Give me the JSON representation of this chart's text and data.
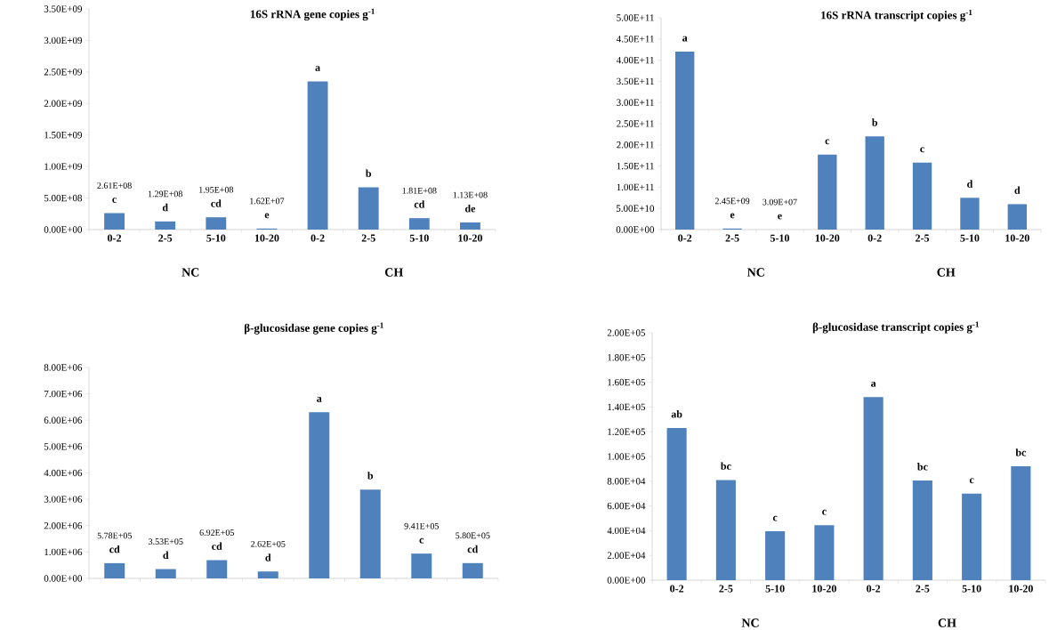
{
  "chart_data": [
    {
      "type": "bar",
      "title": "16S rRNA gene copies g$^{-1}$",
      "color": "#4f81bd",
      "categories": [
        "0-2",
        "2-5",
        "5-10",
        "10-20",
        "0-2",
        "2-5",
        "5-10",
        "10-20"
      ],
      "values": [
        261000000,
        129000000,
        195000000,
        16200000,
        2350000000,
        670000000,
        181000000,
        113000000
      ],
      "value_labels": [
        "2.61E+08",
        "1.29E+08",
        "1.95E+08",
        "1.62E+07",
        null,
        null,
        "1.81E+08",
        "1.13E+08"
      ],
      "ylim": [
        0,
        3500000000
      ],
      "yticks": [
        {
          "value": 0,
          "label": "0.00E+00"
        },
        {
          "value": 500000000,
          "label": "5.00E+08"
        },
        {
          "value": 1000000000,
          "label": "1.00E+09"
        },
        {
          "value": 1500000000,
          "label": "1.50E+09"
        },
        {
          "value": 2000000000,
          "label": "2.00E+09"
        },
        {
          "value": 2500000000,
          "label": "2.50E+09"
        },
        {
          "value": 3000000000,
          "label": "3.00E+09"
        },
        {
          "value": 3500000000,
          "label": "3.50E+09"
        }
      ],
      "annotations": [
        "c",
        "d",
        "cd",
        "e",
        "a",
        "b",
        "cd",
        "de",
        "NC",
        "CH"
      ]
    },
    {
      "type": "bar",
      "title": "16S rRNA transcript copies g$^{-1}$",
      "color": "#4f81bd",
      "categories": [
        "0-2",
        "2-5",
        "5-10",
        "10-20",
        "0-2",
        "2-5",
        "5-10",
        "10-20"
      ],
      "values": [
        420000000000,
        2450000000,
        30900000,
        177000000000,
        220000000000,
        158000000000,
        75000000000,
        60000000000
      ],
      "value_labels": [
        null,
        "2.45E+09",
        "3.09E+07",
        null,
        null,
        null,
        null,
        null
      ],
      "ylim": [
        0,
        500000000000
      ],
      "yticks": [
        {
          "value": 0,
          "label": "0.00E+00"
        },
        {
          "value": 50000000000,
          "label": "5.00E+10"
        },
        {
          "value": 100000000000,
          "label": "1.00E+11"
        },
        {
          "value": 150000000000,
          "label": "1.50E+11"
        },
        {
          "value": 200000000000,
          "label": "2.00E+11"
        },
        {
          "value": 250000000000,
          "label": "2.50E+11"
        },
        {
          "value": 300000000000,
          "label": "3.00E+11"
        },
        {
          "value": 350000000000,
          "label": "3.50E+11"
        },
        {
          "value": 400000000000,
          "label": "4.00E+11"
        },
        {
          "value": 450000000000,
          "label": "4.50E+11"
        },
        {
          "value": 500000000000,
          "label": "5.00E+11"
        }
      ],
      "annotations": [
        "a",
        "e",
        "e",
        "c",
        "b",
        "c",
        "d",
        "d",
        "NC",
        "CH"
      ]
    },
    {
      "type": "bar",
      "title": "β-glucosidase gene copies g$^{-1}$",
      "color": "#4f81bd",
      "categories": [
        null,
        null,
        null,
        null,
        null,
        null,
        null,
        null
      ],
      "values": [
        578000,
        353000,
        692000,
        262000,
        6300000,
        3370000,
        941000,
        580000
      ],
      "value_labels": [
        "5.78E+05",
        "3.53E+05",
        "6.92E+05",
        "2.62E+05",
        null,
        null,
        "9.41E+05",
        "5.80E+05"
      ],
      "ylim": [
        0,
        8000000
      ],
      "yticks": [
        {
          "value": 0,
          "label": "0.00E+00"
        },
        {
          "value": 1000000,
          "label": "1.00E+06"
        },
        {
          "value": 2000000,
          "label": "2.00E+06"
        },
        {
          "value": 3000000,
          "label": "3.00E+06"
        },
        {
          "value": 4000000,
          "label": "4.00E+06"
        },
        {
          "value": 5000000,
          "label": "5.00E+06"
        },
        {
          "value": 6000000,
          "label": "6.00E+06"
        },
        {
          "value": 7000000,
          "label": "7.00E+06"
        },
        {
          "value": 8000000,
          "label": "8.00E+06"
        }
      ],
      "tick_labels": "y",
      "annotations": [
        "cd",
        "d",
        "cd",
        "d",
        "a",
        "b",
        "c",
        "cd"
      ]
    },
    {
      "type": "bar",
      "title": "β-glucosidase transcript copies g$^{-1}$",
      "color": "#4f81bd",
      "categories": [
        "0-2",
        "2-5",
        "5-10",
        "10-20",
        "0-2",
        "2-5",
        "5-10",
        "10-20"
      ],
      "values": [
        123000,
        81000,
        39500,
        44500,
        148000,
        80500,
        70000,
        92000
      ],
      "ylim": [
        0,
        200000
      ],
      "yticks": [
        {
          "value": 0,
          "label": "0.00E+00"
        },
        {
          "value": 20000,
          "label": "2.00E+04"
        },
        {
          "value": 40000,
          "label": "4.00E+04"
        },
        {
          "value": 60000,
          "label": "6.00E+04"
        },
        {
          "value": 80000,
          "label": "8.00E+04"
        },
        {
          "value": 100000,
          "label": "1.00E+05"
        },
        {
          "value": 120000,
          "label": "1.20E+05"
        },
        {
          "value": 140000,
          "label": "1.40E+05"
        },
        {
          "value": 160000,
          "label": "1.60E+05"
        },
        {
          "value": 180000,
          "label": "1.80E+05"
        },
        {
          "value": 200000,
          "label": "2.00E+05"
        }
      ],
      "annotations": [
        "ab",
        "bc",
        "c",
        "c",
        "a",
        "bc",
        "c",
        "bc",
        "NC",
        "CH"
      ]
    }
  ]
}
